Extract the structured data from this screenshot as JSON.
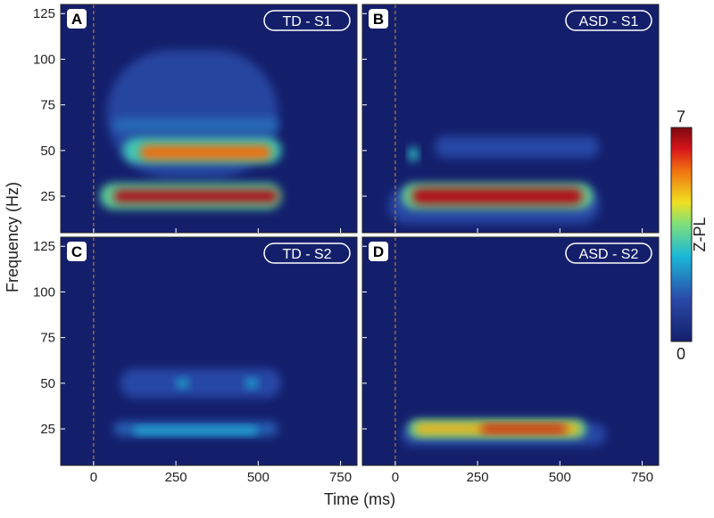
{
  "chart_data": {
    "type": "heatmap",
    "xlabel": "Time (ms)",
    "ylabel": "Frequency (Hz)",
    "xlim": [
      -100,
      800
    ],
    "xticks": [
      0,
      250,
      500,
      750
    ],
    "ylim": [
      5,
      130
    ],
    "yticks": [
      25,
      50,
      75,
      100,
      125
    ],
    "onset": 0,
    "colorbar": {
      "label": "Z-PL",
      "lim": [
        0,
        7
      ],
      "ticks": [
        0,
        7
      ]
    },
    "panels": [
      {
        "letter": "A",
        "label": "TD - S1",
        "blobs": [
          {
            "x": [
              40,
              560
            ],
            "y": 70,
            "height": 70,
            "value": 1.2
          },
          {
            "x": [
              60,
              560
            ],
            "y": 64,
            "height": 8,
            "value": 1.8
          },
          {
            "x": [
              20,
              570
            ],
            "y": 25,
            "height": 14,
            "value": 3.5
          },
          {
            "x": [
              60,
              560
            ],
            "y": 25,
            "height": 7,
            "value": 6.6
          },
          {
            "x": [
              90,
              570
            ],
            "y": 50,
            "height": 14,
            "value": 3.2
          },
          {
            "x": [
              140,
              540
            ],
            "y": 49,
            "height": 8,
            "value": 5.6
          }
        ]
      },
      {
        "letter": "B",
        "label": "ASD - S1",
        "blobs": [
          {
            "x": [
              120,
              620
            ],
            "y": 52,
            "height": 12,
            "value": 1.3
          },
          {
            "x": [
              -20,
              620
            ],
            "y": 20,
            "height": 20,
            "value": 1.3
          },
          {
            "x": [
              20,
              600
            ],
            "y": 25,
            "height": 14,
            "value": 3.6
          },
          {
            "x": [
              50,
              570
            ],
            "y": 25,
            "height": 9,
            "value": 6.6
          },
          {
            "x": [
              40,
              70
            ],
            "y": 48,
            "height": 8,
            "value": 3
          }
        ]
      },
      {
        "letter": "C",
        "label": "TD - S2",
        "blobs": [
          {
            "x": [
              80,
              570
            ],
            "y": 50,
            "height": 16,
            "value": 1.3
          },
          {
            "x": [
              60,
              560
            ],
            "y": 25,
            "height": 8,
            "value": 1.6
          },
          {
            "x": [
              120,
              500
            ],
            "y": 24,
            "height": 4,
            "value": 2.8
          },
          {
            "x": [
              250,
              290
            ],
            "y": 50,
            "height": 5,
            "value": 2.6
          },
          {
            "x": [
              460,
              500
            ],
            "y": 50,
            "height": 5,
            "value": 2.6
          }
        ]
      },
      {
        "letter": "D",
        "label": "ASD - S2",
        "blobs": [
          {
            "x": [
              20,
              640
            ],
            "y": 22,
            "height": 12,
            "value": 1.3
          },
          {
            "x": [
              40,
              580
            ],
            "y": 25,
            "height": 10,
            "value": 3.6
          },
          {
            "x": [
              60,
              560
            ],
            "y": 25,
            "height": 6,
            "value": 5
          },
          {
            "x": [
              260,
              520
            ],
            "y": 25,
            "height": 4,
            "value": 6.5
          }
        ]
      }
    ]
  }
}
